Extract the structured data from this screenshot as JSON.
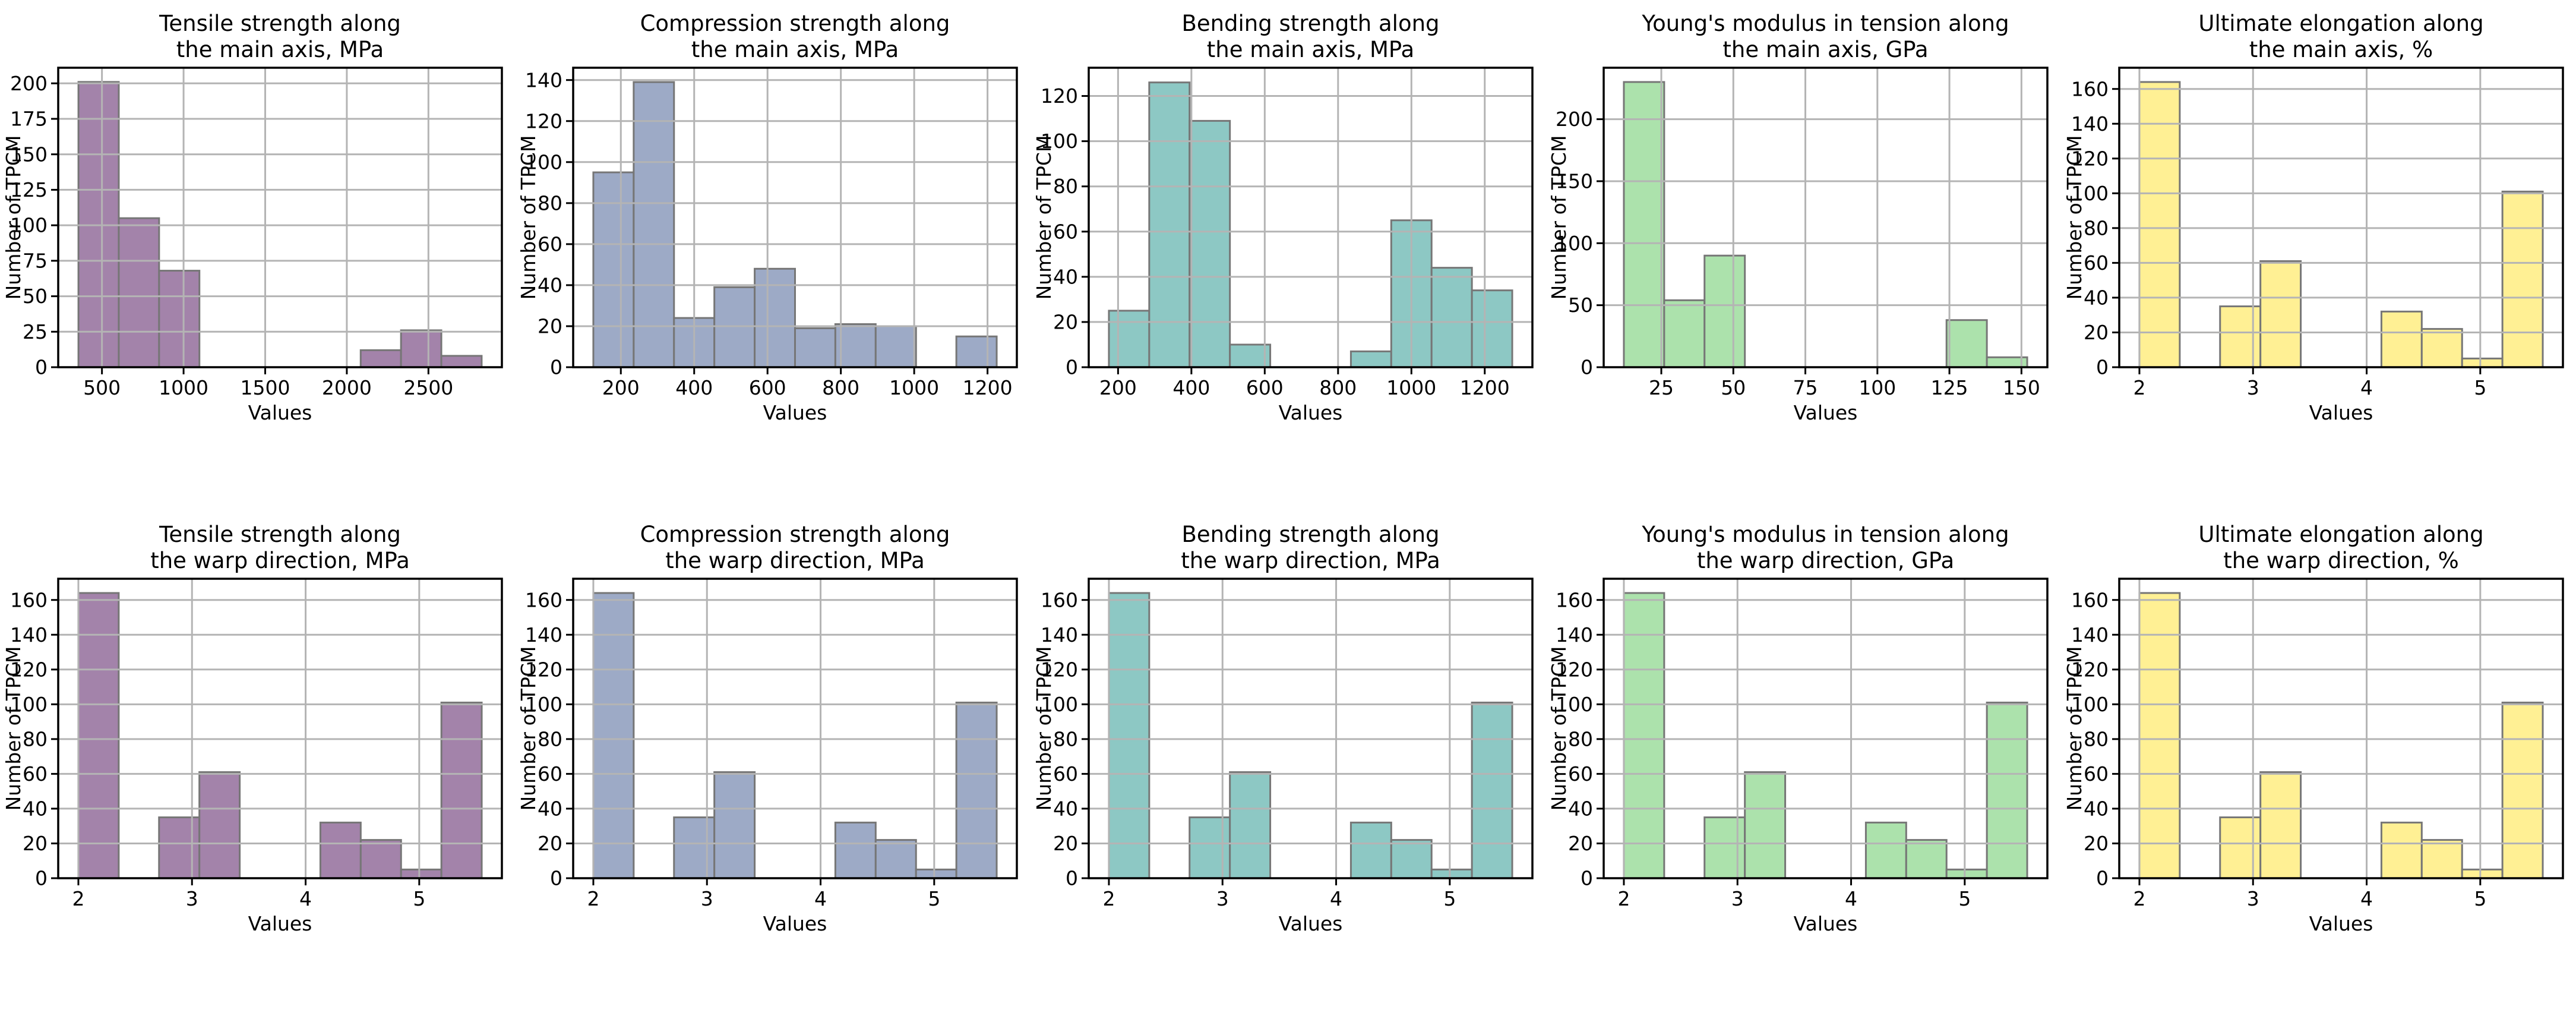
{
  "figure": {
    "background": "#ffffff",
    "rows": 2,
    "cols": 5,
    "grid_color": "#b4b4b4",
    "spine_color": "#000000",
    "bar_edge_color": "#767676",
    "text_color": "#000000"
  },
  "chart_data": [
    {
      "type": "bar",
      "title_lines": [
        "Tensile strength along",
        "the main axis, MPa"
      ],
      "xlabel": "Values",
      "ylabel": "Number of TPCM",
      "color": "#a383aa",
      "bin_edges": [
        356,
        603,
        850,
        1097,
        1344,
        1591,
        1838,
        2085,
        2332,
        2579,
        2826
      ],
      "counts": [
        201,
        105,
        68,
        0,
        0,
        0,
        0,
        12,
        26,
        8
      ],
      "xlim": [
        232,
        2950
      ],
      "ylim": [
        0,
        211
      ],
      "xticks": [
        500,
        1000,
        1500,
        2000,
        2500
      ],
      "yticks": [
        0,
        25,
        50,
        75,
        100,
        125,
        150,
        175,
        200
      ],
      "grid": true,
      "legend": null
    },
    {
      "type": "bar",
      "title_lines": [
        "Compression strength along",
        "the main axis, MPa"
      ],
      "xlabel": "Values",
      "ylabel": "Number of TPCM",
      "color": "#9daac6",
      "bin_edges": [
        125,
        235,
        345,
        455,
        565,
        675,
        785,
        895,
        1005,
        1115,
        1225
      ],
      "counts": [
        95,
        139,
        24,
        39,
        48,
        19,
        21,
        20,
        0,
        15
      ],
      "xlim": [
        70,
        1280
      ],
      "ylim": [
        0,
        146
      ],
      "xticks": [
        200,
        400,
        600,
        800,
        1000,
        1200
      ],
      "yticks": [
        0,
        20,
        40,
        60,
        80,
        100,
        120,
        140
      ],
      "grid": true,
      "legend": null
    },
    {
      "type": "bar",
      "title_lines": [
        "Bending strength along",
        "the main axis, MPa"
      ],
      "xlabel": "Values",
      "ylabel": "Number of TPCM",
      "color": "#8dc8c4",
      "bin_edges": [
        175,
        285,
        395,
        505,
        615,
        725,
        835,
        945,
        1055,
        1165,
        1275
      ],
      "counts": [
        25,
        126,
        109,
        10,
        0,
        0,
        7,
        65,
        44,
        34
      ],
      "xlim": [
        120,
        1330
      ],
      "ylim": [
        0,
        132.5
      ],
      "xticks": [
        200,
        400,
        600,
        800,
        1000,
        1200
      ],
      "yticks": [
        0,
        20,
        40,
        60,
        80,
        100,
        120
      ],
      "grid": true,
      "legend": null
    },
    {
      "type": "bar",
      "title_lines": [
        "Young's modulus in tension along",
        "the main axis, GPa"
      ],
      "xlabel": "Values",
      "ylabel": "Number of TPCM",
      "color": "#ace2ac",
      "bin_edges": [
        12,
        26,
        40,
        54,
        68,
        82,
        96,
        110,
        124,
        138,
        152
      ],
      "counts": [
        230,
        54,
        90,
        0,
        0,
        0,
        0,
        0,
        38,
        8
      ],
      "xlim": [
        5,
        159
      ],
      "ylim": [
        0,
        241.5
      ],
      "xticks": [
        25,
        50,
        75,
        100,
        125,
        150
      ],
      "yticks": [
        0,
        50,
        100,
        150,
        200
      ],
      "grid": true,
      "legend": null
    },
    {
      "type": "bar",
      "title_lines": [
        "Ultimate elongation along",
        "the main axis, %"
      ],
      "xlabel": "Values",
      "ylabel": "Number of TPCM",
      "color": "#fff094",
      "bin_edges": [
        2.0,
        2.355,
        2.71,
        3.065,
        3.42,
        3.775,
        4.13,
        4.485,
        4.84,
        5.195,
        5.55
      ],
      "counts": [
        164,
        0,
        35,
        61,
        0,
        0,
        32,
        22,
        5,
        101
      ],
      "xlim": [
        1.8225,
        5.7275
      ],
      "ylim": [
        0,
        172.2
      ],
      "xticks": [
        2,
        3,
        4,
        5
      ],
      "yticks": [
        0,
        20,
        40,
        60,
        80,
        100,
        120,
        140,
        160
      ],
      "grid": true,
      "legend": null
    },
    {
      "type": "bar",
      "title_lines": [
        "Tensile strength along",
        "the warp direction, MPa"
      ],
      "xlabel": "Values",
      "ylabel": "Number of TPCM",
      "color": "#a383aa",
      "bin_edges": [
        2.0,
        2.355,
        2.71,
        3.065,
        3.42,
        3.775,
        4.13,
        4.485,
        4.84,
        5.195,
        5.55
      ],
      "counts": [
        164,
        0,
        35,
        61,
        0,
        0,
        32,
        22,
        5,
        101
      ],
      "xlim": [
        1.8225,
        5.7275
      ],
      "ylim": [
        0,
        172.2
      ],
      "xticks": [
        2,
        3,
        4,
        5
      ],
      "yticks": [
        0,
        20,
        40,
        60,
        80,
        100,
        120,
        140,
        160
      ],
      "grid": true,
      "legend": null
    },
    {
      "type": "bar",
      "title_lines": [
        "Compression strength along",
        "the warp direction, MPa"
      ],
      "xlabel": "Values",
      "ylabel": "Number of TPCM",
      "color": "#9daac6",
      "bin_edges": [
        2.0,
        2.355,
        2.71,
        3.065,
        3.42,
        3.775,
        4.13,
        4.485,
        4.84,
        5.195,
        5.55
      ],
      "counts": [
        164,
        0,
        35,
        61,
        0,
        0,
        32,
        22,
        5,
        101
      ],
      "xlim": [
        1.8225,
        5.7275
      ],
      "ylim": [
        0,
        172.2
      ],
      "xticks": [
        2,
        3,
        4,
        5
      ],
      "yticks": [
        0,
        20,
        40,
        60,
        80,
        100,
        120,
        140,
        160
      ],
      "grid": true,
      "legend": null
    },
    {
      "type": "bar",
      "title_lines": [
        "Bending strength along",
        "the warp direction, MPa"
      ],
      "xlabel": "Values",
      "ylabel": "Number of TPCM",
      "color": "#8dc8c4",
      "bin_edges": [
        2.0,
        2.355,
        2.71,
        3.065,
        3.42,
        3.775,
        4.13,
        4.485,
        4.84,
        5.195,
        5.55
      ],
      "counts": [
        164,
        0,
        35,
        61,
        0,
        0,
        32,
        22,
        5,
        101
      ],
      "xlim": [
        1.8225,
        5.7275
      ],
      "ylim": [
        0,
        172.2
      ],
      "xticks": [
        2,
        3,
        4,
        5
      ],
      "yticks": [
        0,
        20,
        40,
        60,
        80,
        100,
        120,
        140,
        160
      ],
      "grid": true,
      "legend": null
    },
    {
      "type": "bar",
      "title_lines": [
        "Young's modulus in tension along",
        "the warp direction, GPa"
      ],
      "xlabel": "Values",
      "ylabel": "Number of TPCM",
      "color": "#ace2ac",
      "bin_edges": [
        2.0,
        2.355,
        2.71,
        3.065,
        3.42,
        3.775,
        4.13,
        4.485,
        4.84,
        5.195,
        5.55
      ],
      "counts": [
        164,
        0,
        35,
        61,
        0,
        0,
        32,
        22,
        5,
        101
      ],
      "xlim": [
        1.8225,
        5.7275
      ],
      "ylim": [
        0,
        172.2
      ],
      "xticks": [
        2,
        3,
        4,
        5
      ],
      "yticks": [
        0,
        20,
        40,
        60,
        80,
        100,
        120,
        140,
        160
      ],
      "grid": true,
      "legend": null
    },
    {
      "type": "bar",
      "title_lines": [
        "Ultimate elongation along",
        "the warp direction, %"
      ],
      "xlabel": "Values",
      "ylabel": "Number of TPCM",
      "color": "#fff094",
      "bin_edges": [
        2.0,
        2.355,
        2.71,
        3.065,
        3.42,
        3.775,
        4.13,
        4.485,
        4.84,
        5.195,
        5.55
      ],
      "counts": [
        164,
        0,
        35,
        61,
        0,
        0,
        32,
        22,
        5,
        101
      ],
      "xlim": [
        1.8225,
        5.7275
      ],
      "ylim": [
        0,
        172.2
      ],
      "xticks": [
        2,
        3,
        4,
        5
      ],
      "yticks": [
        0,
        20,
        40,
        60,
        80,
        100,
        120,
        140,
        160
      ],
      "grid": true,
      "legend": null
    }
  ]
}
